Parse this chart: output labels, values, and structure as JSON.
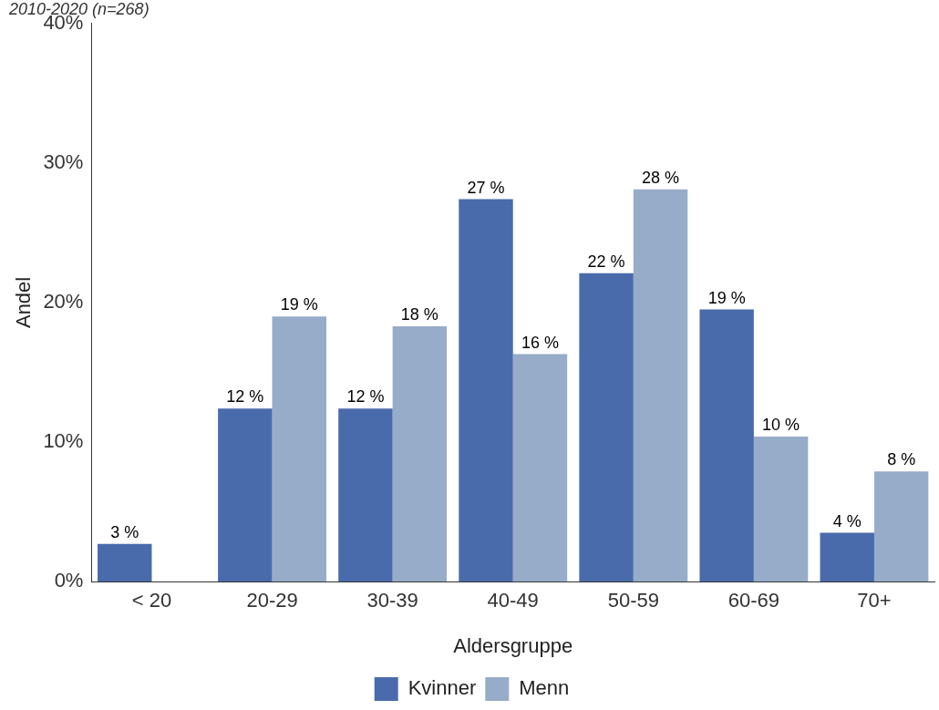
{
  "chart_data": {
    "type": "bar",
    "subtitle": "2010-2020 (n=268)",
    "xlabel": "Aldersgruppe",
    "ylabel": "Andel",
    "categories": [
      "< 20",
      "20-29",
      "30-39",
      "40-49",
      "50-59",
      "60-69",
      "70+"
    ],
    "series": [
      {
        "name": "Kvinner",
        "color": "#4a6bab",
        "values": [
          2.7,
          12.4,
          12.4,
          27.4,
          22.1,
          19.5,
          3.5
        ],
        "value_labels": [
          "3 %",
          "12 %",
          "12 %",
          "27 %",
          "22 %",
          "19 %",
          "4 %"
        ]
      },
      {
        "name": "Menn",
        "color": "#97acc8",
        "values": [
          null,
          19.0,
          18.3,
          16.3,
          28.1,
          10.4,
          7.9
        ],
        "value_labels": [
          null,
          "19 %",
          "18 %",
          "16 %",
          "28 %",
          "10 %",
          "8 %"
        ]
      }
    ],
    "ylim": [
      0,
      40
    ],
    "yticks": [
      {
        "value": 0,
        "label": "0%"
      },
      {
        "value": 10,
        "label": "10%"
      },
      {
        "value": 20,
        "label": "20%"
      },
      {
        "value": 30,
        "label": "30%"
      },
      {
        "value": 40,
        "label": "40%"
      }
    ],
    "grid": false,
    "legend": "bottom"
  }
}
